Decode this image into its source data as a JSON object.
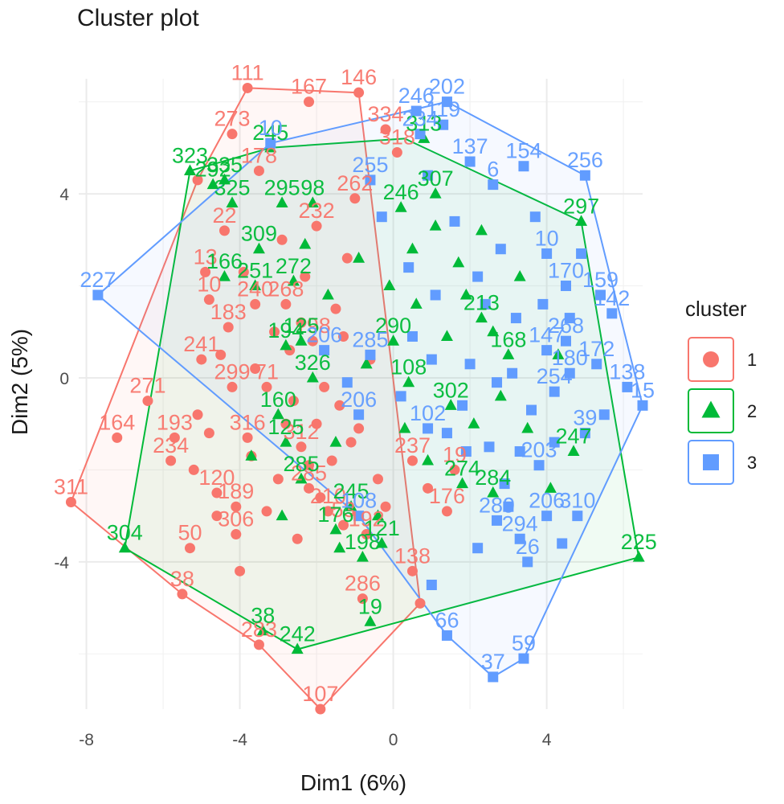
{
  "chart_data": {
    "type": "scatter",
    "title": "Cluster plot",
    "xlabel": "Dim1 (6%)",
    "ylabel": "Dim2 (5%)",
    "xlim": [
      -8.2,
      6.5
    ],
    "ylim": [
      -7.2,
      6.5
    ],
    "x_ticks": [
      -8,
      -4,
      0,
      4
    ],
    "y_ticks": [
      4,
      0,
      -4
    ],
    "grid": true,
    "legend": {
      "title": "cluster",
      "position": "right"
    },
    "colors": {
      "1": "#F8766D",
      "2": "#00BA38",
      "3": "#619CFF"
    },
    "hulls": [
      {
        "cluster": "1",
        "points": [
          [
            -8.4,
            -2.7
          ],
          [
            -5.5,
            -4.7
          ],
          [
            -3.5,
            -5.8
          ],
          [
            -1.9,
            -7.2
          ],
          [
            0.7,
            -4.9
          ],
          [
            -0.9,
            6.2
          ],
          [
            -3.8,
            6.3
          ],
          [
            -5.1,
            4.3
          ]
        ]
      },
      {
        "cluster": "2",
        "points": [
          [
            -7.0,
            -3.7
          ],
          [
            -2.5,
            -5.9
          ],
          [
            6.4,
            -3.9
          ],
          [
            4.9,
            3.4
          ],
          [
            0.3,
            5.2
          ],
          [
            -3.2,
            5.0
          ],
          [
            -5.3,
            4.5
          ]
        ]
      },
      {
        "cluster": "3",
        "points": [
          [
            -7.7,
            1.8
          ],
          [
            -0.9,
            -3.0
          ],
          [
            1.4,
            -5.6
          ],
          [
            2.6,
            -6.5
          ],
          [
            3.4,
            -6.1
          ],
          [
            6.5,
            -0.6
          ],
          [
            5.0,
            4.4
          ],
          [
            1.4,
            6.0
          ],
          [
            -3.2,
            5.1
          ]
        ]
      }
    ],
    "series": [
      {
        "name": "1",
        "shape": "circle",
        "points": [
          [
            -8.4,
            -2.7,
            "311"
          ],
          [
            -7.2,
            -1.3,
            "164"
          ],
          [
            -5.5,
            -4.7,
            "38"
          ],
          [
            -5.3,
            -3.7,
            "50"
          ],
          [
            -3.5,
            -5.8,
            "283"
          ],
          [
            -1.9,
            -7.2,
            "107"
          ],
          [
            0.7,
            -4.9,
            ""
          ],
          [
            -0.9,
            6.2,
            "146"
          ],
          [
            -3.8,
            6.3,
            "111"
          ],
          [
            -2.2,
            6.0,
            "167"
          ],
          [
            -5.1,
            4.3,
            ""
          ],
          [
            -4.2,
            5.3,
            "273"
          ],
          [
            -3.5,
            4.5,
            "178"
          ],
          [
            -4.4,
            3.2,
            "22"
          ],
          [
            -4.9,
            2.3,
            "13"
          ],
          [
            -4.8,
            1.7,
            "10"
          ],
          [
            -5.8,
            -1.8,
            "234"
          ],
          [
            -5.7,
            -1.3,
            "193"
          ],
          [
            -6.4,
            -0.5,
            "271"
          ],
          [
            -5.0,
            0.4,
            "241"
          ],
          [
            -4.2,
            -0.2,
            "299"
          ],
          [
            -4.1,
            -2.8,
            "189"
          ],
          [
            -4.1,
            -3.4,
            "306"
          ],
          [
            -4.6,
            -2.5,
            "120"
          ],
          [
            -3.8,
            -1.3,
            "316"
          ],
          [
            -4.0,
            -4.2,
            ""
          ],
          [
            -2.0,
            3.3,
            "232"
          ],
          [
            -2.8,
            1.6,
            "268"
          ],
          [
            -3.6,
            1.6,
            "240"
          ],
          [
            -4.3,
            1.1,
            "183"
          ],
          [
            -2.1,
            0.8,
            "198"
          ],
          [
            -3.3,
            -0.2,
            "71"
          ],
          [
            -2.4,
            -1.5,
            "312"
          ],
          [
            -2.2,
            -2.4,
            "285"
          ],
          [
            -1.7,
            -2.9,
            "210"
          ],
          [
            -1.3,
            -3.2,
            "53"
          ],
          [
            -0.7,
            -3.4,
            "192"
          ],
          [
            0.5,
            -4.2,
            "138"
          ],
          [
            -0.8,
            -4.8,
            "286"
          ],
          [
            -1.0,
            3.9,
            "262"
          ],
          [
            0.1,
            4.9,
            "318"
          ],
          [
            -0.2,
            5.4,
            "334"
          ],
          [
            0.5,
            -1.8,
            "237"
          ],
          [
            1.6,
            -2.0,
            "19"
          ],
          [
            1.4,
            -2.9,
            "176"
          ],
          [
            -2.6,
            -0.5,
            ""
          ],
          [
            -2.0,
            -1.0,
            ""
          ],
          [
            -1.6,
            -1.8,
            ""
          ],
          [
            -3.0,
            -2.2,
            ""
          ],
          [
            -1.4,
            -0.6,
            ""
          ],
          [
            -1.1,
            -1.4,
            ""
          ],
          [
            -2.8,
            -1.0,
            ""
          ],
          [
            -3.1,
            1.0,
            ""
          ],
          [
            -2.3,
            2.2,
            ""
          ],
          [
            -1.5,
            1.5,
            ""
          ],
          [
            -0.4,
            -2.2,
            ""
          ],
          [
            -2.5,
            -3.5,
            ""
          ],
          [
            -3.3,
            -2.9,
            ""
          ],
          [
            -1.8,
            -0.2,
            ""
          ],
          [
            -4.8,
            -1.2,
            ""
          ],
          [
            -5.1,
            -0.8,
            ""
          ],
          [
            -4.5,
            0.5,
            ""
          ],
          [
            -3.9,
            2.3,
            ""
          ],
          [
            -2.9,
            3.0,
            ""
          ],
          [
            -5.2,
            -2.0,
            ""
          ],
          [
            -4.6,
            -3.0,
            ""
          ],
          [
            -0.2,
            -2.8,
            ""
          ],
          [
            0.9,
            -2.4,
            ""
          ],
          [
            -1.2,
            2.6,
            ""
          ],
          [
            -0.6,
            0.4,
            ""
          ],
          [
            -3.6,
            0.2,
            ""
          ],
          [
            -2.2,
            -1.9,
            ""
          ],
          [
            -1.9,
            -2.6,
            ""
          ],
          [
            -2.7,
            0.6,
            ""
          ],
          [
            -3.7,
            -1.7,
            ""
          ],
          [
            -1.3,
            0.9,
            ""
          ],
          [
            -0.9,
            -1.1,
            ""
          ],
          [
            -2.4,
            1.2,
            ""
          ]
        ]
      },
      {
        "name": "2",
        "shape": "triangle",
        "points": [
          [
            -7.0,
            -3.7,
            "304"
          ],
          [
            -2.5,
            -5.9,
            "242"
          ],
          [
            -3.4,
            -5.5,
            "38"
          ],
          [
            -0.6,
            -5.3,
            "19"
          ],
          [
            6.4,
            -3.9,
            "225"
          ],
          [
            4.9,
            3.4,
            "297"
          ],
          [
            4.7,
            -1.6,
            "247"
          ],
          [
            -3.2,
            5.0,
            "245"
          ],
          [
            -5.3,
            4.5,
            "323"
          ],
          [
            -4.7,
            4.2,
            "292"
          ],
          [
            -4.4,
            4.3,
            "335"
          ],
          [
            -4.2,
            3.8,
            "325"
          ],
          [
            -2.1,
            3.8,
            "98"
          ],
          [
            -2.9,
            3.8,
            "295"
          ],
          [
            -3.5,
            2.8,
            "309"
          ],
          [
            -4.4,
            2.2,
            "166"
          ],
          [
            -3.6,
            2.0,
            "251"
          ],
          [
            -2.6,
            2.1,
            "272"
          ],
          [
            -2.8,
            0.7,
            "194"
          ],
          [
            -2.4,
            0.8,
            "125"
          ],
          [
            -2.1,
            0.0,
            "326"
          ],
          [
            -3.0,
            -0.8,
            "160"
          ],
          [
            -2.8,
            -1.4,
            "125"
          ],
          [
            -2.4,
            -2.2,
            "285"
          ],
          [
            -1.1,
            -2.8,
            "245"
          ],
          [
            -0.8,
            -3.9,
            "198"
          ],
          [
            -0.3,
            -3.6,
            "121"
          ],
          [
            -1.5,
            -3.3,
            "176"
          ],
          [
            1.1,
            4.0,
            "307"
          ],
          [
            0.8,
            5.2,
            "313"
          ],
          [
            0.2,
            3.7,
            "246"
          ],
          [
            0.0,
            0.8,
            "290"
          ],
          [
            0.4,
            -0.1,
            "108"
          ],
          [
            1.5,
            -0.6,
            "302"
          ],
          [
            2.6,
            -2.5,
            "284"
          ],
          [
            1.8,
            -2.3,
            "274"
          ],
          [
            2.3,
            1.3,
            "213"
          ],
          [
            3.0,
            0.5,
            "168"
          ],
          [
            -1.4,
            -3.7,
            ""
          ],
          [
            -0.4,
            -3.0,
            ""
          ],
          [
            -2.9,
            -3.0,
            ""
          ],
          [
            1.7,
            2.5,
            ""
          ],
          [
            0.6,
            1.6,
            ""
          ],
          [
            -0.9,
            2.6,
            ""
          ],
          [
            2.3,
            3.2,
            ""
          ],
          [
            1.1,
            3.3,
            ""
          ],
          [
            -1.7,
            1.8,
            ""
          ],
          [
            0.3,
            -1.1,
            ""
          ],
          [
            -0.1,
            2.0,
            ""
          ],
          [
            1.4,
            0.9,
            ""
          ],
          [
            2.1,
            -1.0,
            ""
          ],
          [
            3.5,
            -1.1,
            ""
          ],
          [
            4.1,
            -2.4,
            ""
          ],
          [
            3.3,
            2.2,
            ""
          ],
          [
            2.6,
            1.0,
            ""
          ],
          [
            0.9,
            -1.8,
            ""
          ],
          [
            -3.7,
            -1.7,
            ""
          ],
          [
            -2.3,
            2.9,
            ""
          ],
          [
            0.5,
            2.8,
            ""
          ],
          [
            -0.7,
            0.3,
            ""
          ],
          [
            -1.5,
            -1.4,
            ""
          ],
          [
            1.9,
            1.8,
            ""
          ],
          [
            4.3,
            0.5,
            ""
          ],
          [
            2.8,
            -0.4,
            ""
          ]
        ]
      },
      {
        "name": "3",
        "shape": "square",
        "points": [
          [
            -7.7,
            1.8,
            "227"
          ],
          [
            -0.9,
            -3.0,
            "108"
          ],
          [
            1.4,
            -5.6,
            "66"
          ],
          [
            2.6,
            -6.5,
            "37"
          ],
          [
            3.4,
            -6.1,
            "59"
          ],
          [
            6.5,
            -0.6,
            "15"
          ],
          [
            5.0,
            4.4,
            "256"
          ],
          [
            1.4,
            6.0,
            "202"
          ],
          [
            -3.2,
            5.1,
            "10"
          ],
          [
            0.7,
            5.3,
            "234"
          ],
          [
            1.3,
            5.5,
            "119"
          ],
          [
            3.4,
            4.6,
            "154"
          ],
          [
            2.6,
            4.2,
            "6"
          ],
          [
            2.0,
            4.7,
            "137"
          ],
          [
            -0.6,
            4.3,
            "255"
          ],
          [
            4.0,
            2.7,
            "10"
          ],
          [
            4.5,
            2.0,
            "170"
          ],
          [
            5.4,
            1.8,
            "159"
          ],
          [
            5.7,
            1.4,
            "142"
          ],
          [
            4.5,
            0.8,
            "268"
          ],
          [
            4.0,
            0.6,
            "147"
          ],
          [
            4.6,
            0.1,
            "180"
          ],
          [
            5.3,
            0.3,
            "172"
          ],
          [
            4.2,
            -0.3,
            "254"
          ],
          [
            6.1,
            -0.2,
            "138"
          ],
          [
            5.0,
            -1.2,
            "39"
          ],
          [
            3.8,
            -1.9,
            "203"
          ],
          [
            4.0,
            -3.0,
            "206"
          ],
          [
            4.8,
            -3.0,
            "310"
          ],
          [
            3.3,
            -3.5,
            "294"
          ],
          [
            2.7,
            -3.1,
            "289"
          ],
          [
            3.5,
            -4.0,
            "26"
          ],
          [
            0.9,
            -1.1,
            "102"
          ],
          [
            -0.9,
            -0.8,
            "206"
          ],
          [
            -0.6,
            0.5,
            "285"
          ],
          [
            -1.8,
            0.6,
            "206"
          ],
          [
            0.6,
            5.8,
            "246"
          ],
          [
            1.6,
            3.4,
            ""
          ],
          [
            2.8,
            2.8,
            ""
          ],
          [
            3.2,
            1.3,
            ""
          ],
          [
            2.0,
            0.3,
            ""
          ],
          [
            3.6,
            -0.7,
            ""
          ],
          [
            2.5,
            -1.5,
            ""
          ],
          [
            1.1,
            1.8,
            ""
          ],
          [
            0.4,
            2.4,
            ""
          ],
          [
            2.9,
            -2.3,
            ""
          ],
          [
            1.9,
            -1.6,
            ""
          ],
          [
            4.2,
            -1.4,
            ""
          ],
          [
            3.1,
            0.1,
            ""
          ],
          [
            2.2,
            2.2,
            ""
          ],
          [
            3.7,
            3.5,
            ""
          ],
          [
            1.0,
            0.4,
            ""
          ],
          [
            0.2,
            -0.4,
            ""
          ],
          [
            4.6,
            1.3,
            ""
          ],
          [
            5.5,
            -0.8,
            ""
          ],
          [
            3.0,
            -2.8,
            ""
          ],
          [
            2.2,
            -3.7,
            ""
          ],
          [
            1.0,
            -4.5,
            ""
          ],
          [
            4.4,
            -3.6,
            ""
          ],
          [
            -0.3,
            3.5,
            ""
          ],
          [
            0.9,
            4.4,
            ""
          ],
          [
            1.8,
            -0.6,
            ""
          ],
          [
            2.7,
            -0.1,
            ""
          ],
          [
            3.9,
            1.6,
            ""
          ],
          [
            1.4,
            -1.2,
            ""
          ],
          [
            0.5,
            0.9,
            ""
          ],
          [
            -1.2,
            -0.1,
            ""
          ],
          [
            2.4,
            1.6,
            ""
          ],
          [
            3.3,
            -1.6,
            ""
          ],
          [
            4.9,
            2.7,
            ""
          ]
        ]
      }
    ]
  }
}
